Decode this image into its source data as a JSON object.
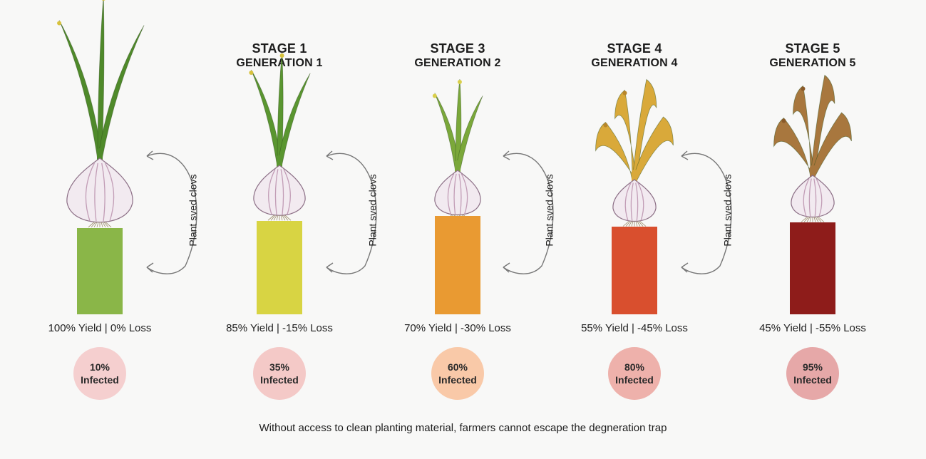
{
  "stages": [
    {
      "title": "",
      "subtitle": "",
      "yield_label": "100% Yield | 0% Loss",
      "infected_pct": "10%",
      "infected_label": "Infected",
      "bar_color": "#8ab648",
      "badge_color": "#f5cfcf",
      "leaf_color": "#4f8a2a",
      "leaf_tip": "#d8c23c",
      "bar_fraction": 0.65
    },
    {
      "title": "STAGE 1",
      "subtitle": "GENERATION 1",
      "yield_label": "85% Yield | -15% Loss",
      "infected_pct": "35%",
      "infected_label": "Infected",
      "bar_color": "#d8d443",
      "badge_color": "#f4c9c7",
      "leaf_color": "#5a9630",
      "leaf_tip": "#d8c23c",
      "bar_fraction": 0.7
    },
    {
      "title": "STAGE 3",
      "subtitle": "GENERATION 2",
      "yield_label": "70% Yield | -30% Loss",
      "infected_pct": "60%",
      "infected_label": "Infected",
      "bar_color": "#e99a32",
      "badge_color": "#f9c9a8",
      "leaf_color": "#7ba83a",
      "leaf_tip": "#d9cf4a",
      "bar_fraction": 0.75
    },
    {
      "title": "STAGE 4",
      "subtitle": "GENERATION 4",
      "yield_label": "55% Yield | -45% Loss",
      "infected_pct": "80%",
      "infected_label": "Infected",
      "bar_color": "#d94f2e",
      "badge_color": "#eeb1ab",
      "leaf_color": "#d9a93a",
      "leaf_tip": "#b8862a",
      "bar_fraction": 0.68
    },
    {
      "title": "STAGE 5",
      "subtitle": "GENERATION 5",
      "yield_label": "45% Yield | -55% Loss",
      "infected_pct": "95%",
      "infected_label": "Infected",
      "bar_color": "#8e1c1a",
      "badge_color": "#e6a8a8",
      "leaf_color": "#a8773e",
      "leaf_tip": "#8a5a2a",
      "bar_fraction": 0.71
    }
  ],
  "cycle_labels": [
    "Plant sved clovs",
    "Plant sved clovs",
    "Plant sved clovs",
    "Plant sved clovs"
  ],
  "footer": "Without access to clean planting material, farmers cannot escape the degneration trap"
}
